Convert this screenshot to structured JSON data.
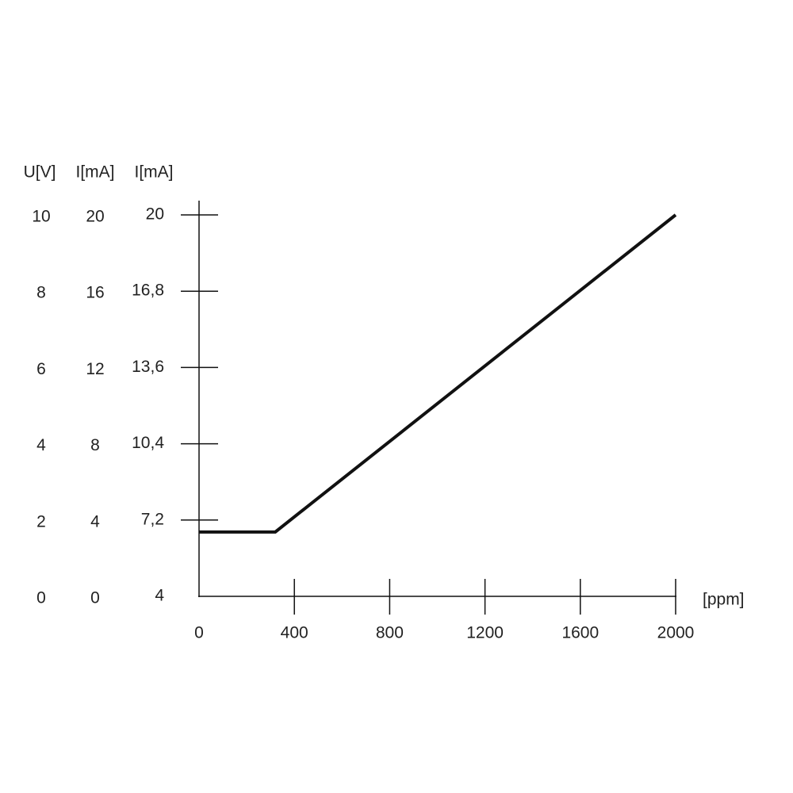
{
  "chart_data": {
    "type": "line",
    "xlabel": "[ppm]",
    "xlim": [
      0,
      2000
    ],
    "xticks": [
      0,
      400,
      800,
      1200,
      1600,
      2000
    ],
    "ylabel": "I[mA]",
    "ylim": [
      4,
      20
    ],
    "yticks": [
      4,
      {
        "value": 7.2,
        "label": "7,2"
      },
      {
        "value": 10.4,
        "label": "10,4"
      },
      {
        "value": 13.6,
        "label": "13,6"
      },
      {
        "value": 16.8,
        "label": "16,8"
      },
      20
    ],
    "y2label": "U[V]",
    "y2lim": [
      0,
      10
    ],
    "y2ticks": [
      0,
      2,
      4,
      6,
      8,
      10
    ],
    "y3label": "I[mA]",
    "y3lim": [
      0,
      20
    ],
    "y3ticks": [
      0,
      4,
      8,
      12,
      16,
      20
    ],
    "series": [
      {
        "color": "#111111",
        "x": [
          0,
          320,
          2000
        ],
        "values": [
          6.7,
          6.7,
          20
        ]
      }
    ]
  }
}
